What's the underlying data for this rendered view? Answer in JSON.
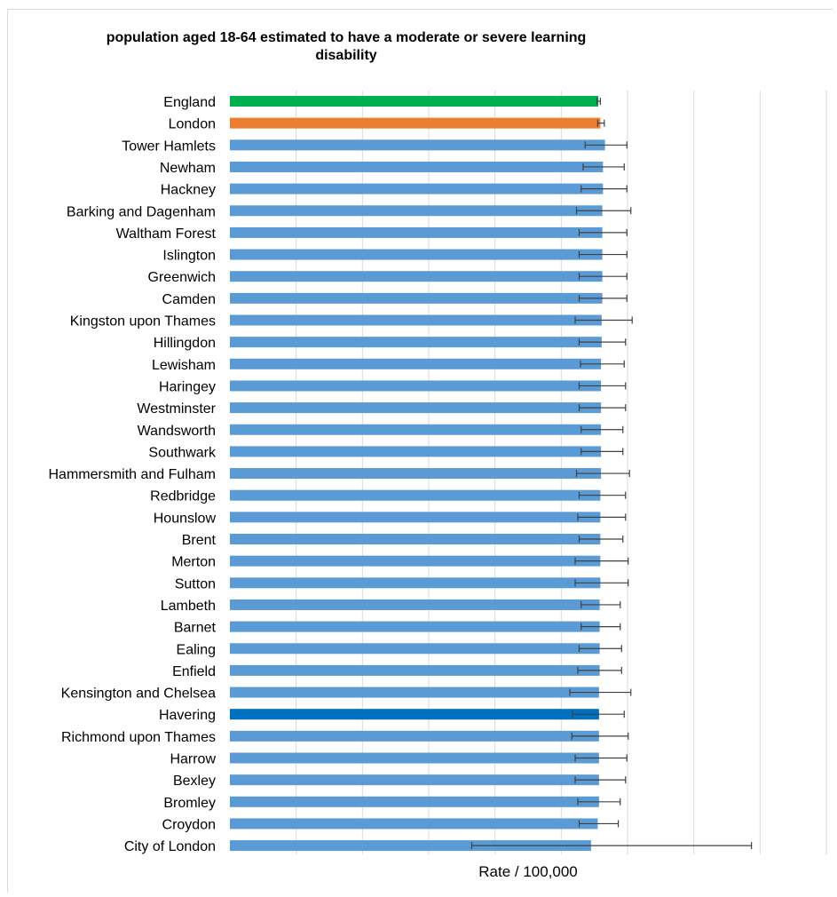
{
  "chart_data": {
    "type": "bar",
    "orientation": "horizontal",
    "title": "population aged 18-64 estimated  to have a moderate or severe learning disability",
    "xlabel": "Rate / 100,000",
    "ylabel": "",
    "xlim": [
      0,
      900
    ],
    "grid": true,
    "error_bars": true,
    "categories": [
      "England",
      "London",
      "Tower Hamlets",
      "Newham",
      "Hackney",
      "Barking and Dagenham",
      "Waltham Forest",
      "Islington",
      "Greenwich",
      "Camden",
      "Kingston upon Thames",
      "Hillingdon",
      "Lewisham",
      "Haringey",
      "Westminster",
      "Wandsworth",
      "Southwark",
      "Hammersmith and Fulham",
      "Redbridge",
      "Hounslow",
      "Brent",
      "Merton",
      "Sutton",
      "Lambeth",
      "Barnet",
      "Ealing",
      "Enfield",
      "Kensington and Chelsea",
      "Havering",
      "Richmond upon Thames",
      "Harrow",
      "Bexley",
      "Bromley",
      "Croydon",
      "City of London"
    ],
    "values": [
      556,
      559,
      566,
      563,
      563,
      562,
      562,
      562,
      562,
      562,
      561,
      561,
      560,
      560,
      560,
      560,
      560,
      560,
      559,
      559,
      559,
      559,
      559,
      558,
      558,
      558,
      558,
      557,
      557,
      557,
      557,
      557,
      557,
      555,
      545
    ],
    "lower": [
      554,
      555,
      536,
      533,
      530,
      523,
      527,
      527,
      527,
      527,
      521,
      527,
      529,
      527,
      527,
      530,
      530,
      523,
      527,
      525,
      527,
      521,
      521,
      530,
      530,
      527,
      525,
      513,
      517,
      516,
      521,
      521,
      525,
      527,
      365
    ],
    "upper": [
      559,
      565,
      599,
      595,
      599,
      605,
      599,
      599,
      599,
      599,
      607,
      597,
      595,
      597,
      597,
      593,
      593,
      603,
      597,
      597,
      593,
      601,
      601,
      589,
      589,
      591,
      591,
      605,
      595,
      601,
      599,
      597,
      589,
      586,
      787
    ],
    "colors": {
      "England": "#00b050",
      "London": "#ed7d31",
      "Havering": "#0070c0",
      "default": "#5b9bd5",
      "error_bar": "#404040",
      "gridline": "#d9d9d9"
    }
  }
}
